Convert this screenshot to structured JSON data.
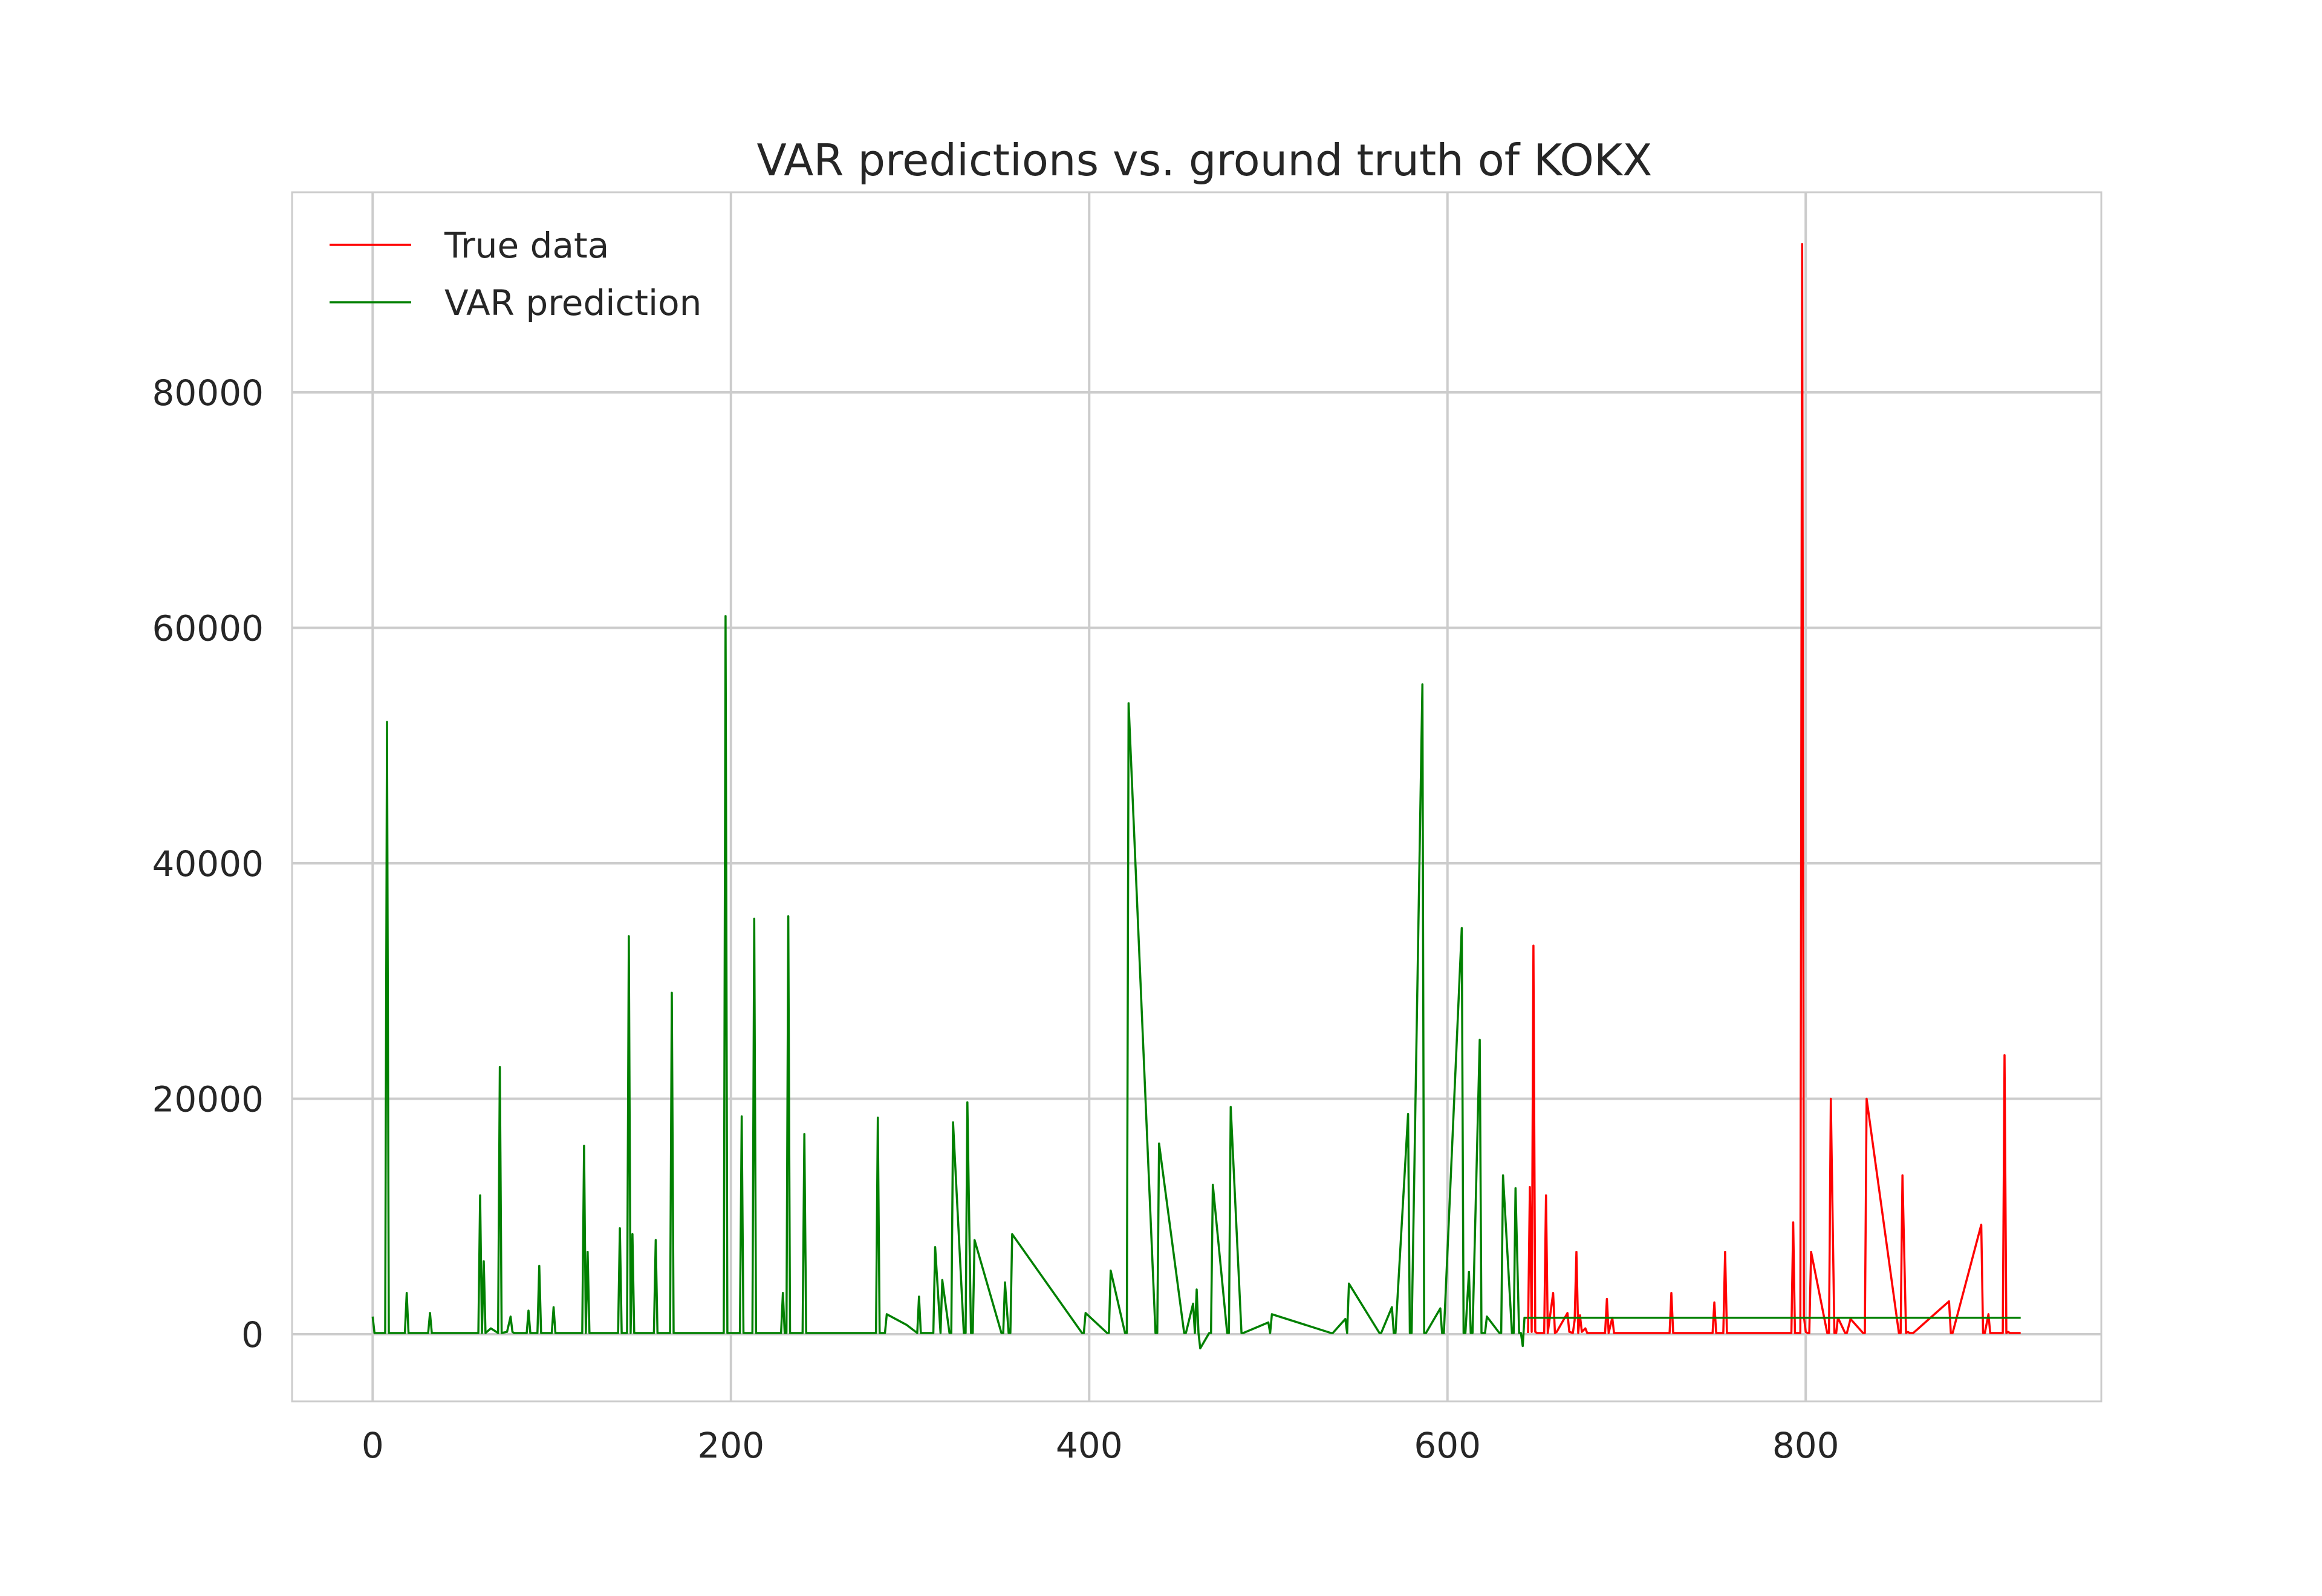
{
  "chart_data": {
    "type": "line",
    "title": "VAR predictions vs. ground truth of KOKX",
    "xlabel": "",
    "ylabel": "",
    "xlim": [
      -45,
      965
    ],
    "ylim": [
      -5700,
      97000
    ],
    "grid": true,
    "legend_position": "top-left",
    "xticks": [
      0,
      200,
      400,
      600,
      800
    ],
    "xtick_labels": [
      "0",
      "200",
      "400",
      "600",
      "800"
    ],
    "yticks": [
      0,
      20000,
      40000,
      60000,
      80000
    ],
    "ytick_labels": [
      "0",
      "20000",
      "40000",
      "60000",
      "80000"
    ],
    "series": [
      {
        "name": "VAR prediction",
        "color": "#008000",
        "x": [
          0,
          1,
          2,
          7,
          8,
          9,
          18,
          19,
          20,
          31,
          32,
          33,
          59,
          60,
          61,
          62,
          63,
          66,
          70,
          71,
          72,
          75,
          77,
          78,
          79,
          86,
          87,
          88,
          92,
          93,
          94,
          100,
          101,
          102,
          117,
          118,
          119,
          120,
          121,
          122,
          137,
          138,
          139,
          142,
          143,
          144,
          145,
          146,
          147,
          157,
          158,
          159,
          166,
          167,
          168,
          196,
          197,
          198,
          205,
          206,
          207,
          212,
          213,
          214,
          228,
          229,
          230,
          231,
          232,
          233,
          240,
          241,
          242,
          281,
          282,
          283,
          286,
          287,
          298,
          304,
          305,
          306,
          313,
          314,
          317,
          318,
          322,
          323,
          324,
          330,
          331,
          332,
          334,
          335,
          336,
          351,
          352,
          353,
          355,
          356,
          357,
          396,
          397,
          398,
          410,
          411,
          412,
          420,
          421,
          422,
          437,
          438,
          439,
          453,
          454,
          458,
          459,
          460,
          461,
          462,
          467,
          468,
          469,
          477,
          478,
          479,
          485,
          486,
          500,
          501,
          502,
          535,
          536,
          543,
          544,
          545,
          562,
          563,
          569,
          570,
          571,
          578,
          579,
          580,
          586,
          587,
          588,
          596,
          597,
          598,
          608,
          609,
          610,
          612,
          613,
          614,
          618,
          619,
          621,
          622,
          629,
          630,
          631,
          636,
          637,
          638,
          640,
          641,
          642,
          643,
          644,
          645
        ],
        "y": [
          1500,
          100,
          100,
          100,
          52000,
          100,
          100,
          3500,
          100,
          100,
          1800,
          100,
          100,
          11800,
          100,
          6200,
          100,
          500,
          100,
          22700,
          100,
          200,
          1500,
          200,
          100,
          100,
          2000,
          100,
          100,
          5800,
          100,
          100,
          2300,
          100,
          100,
          16000,
          100,
          7000,
          100,
          100,
          100,
          9000,
          100,
          100,
          33800,
          100,
          8500,
          100,
          100,
          100,
          8000,
          100,
          100,
          29000,
          100,
          100,
          61000,
          100,
          100,
          18500,
          100,
          100,
          35300,
          100,
          100,
          3500,
          100,
          100,
          35500,
          100,
          100,
          17000,
          100,
          100,
          18400,
          100,
          100,
          1700,
          800,
          100,
          3200,
          100,
          100,
          7400,
          100,
          4600,
          100,
          100,
          18000,
          100,
          100,
          19700,
          100,
          100,
          8000,
          100,
          100,
          4400,
          100,
          100,
          8500,
          100,
          100,
          1800,
          100,
          100,
          5400,
          100,
          100,
          53600,
          100,
          100,
          16200,
          100,
          100,
          2600,
          100,
          3800,
          100,
          -1200,
          100,
          100,
          12700,
          100,
          100,
          19300,
          100,
          100,
          1000,
          100,
          1700,
          100,
          100,
          1300,
          100,
          4300,
          100,
          100,
          2300,
          100,
          100,
          18700,
          100,
          100,
          55200,
          100,
          100,
          2200,
          100,
          100,
          34500,
          100,
          100,
          5300,
          100,
          100,
          25000,
          100,
          100,
          1500,
          100,
          100,
          13500,
          100,
          100,
          12400,
          100,
          100,
          -1000,
          1400,
          1400,
          1400
        ],
        "constant_tail": {
          "from_x": 645,
          "to_x": 920,
          "y": 1400
        }
      },
      {
        "name": "True data",
        "color": "#ff0000",
        "x": [
          645,
          646,
          647,
          648,
          649,
          650,
          654,
          655,
          656,
          659,
          660,
          661,
          667,
          668,
          670,
          671,
          672,
          673,
          674,
          675,
          677,
          678,
          688,
          689,
          690,
          692,
          693,
          724,
          725,
          726,
          748,
          749,
          750,
          754,
          755,
          756,
          792,
          793,
          794,
          797,
          798,
          799,
          800,
          801,
          802,
          803,
          812,
          813,
          814,
          816,
          817,
          818,
          822,
          823,
          825,
          832,
          833,
          834,
          852,
          853,
          854,
          856,
          857,
          858,
          860,
          880,
          881,
          882,
          898,
          899,
          900,
          902,
          903,
          910,
          911,
          912,
          913,
          914,
          918,
          920
        ],
        "y": [
          100,
          12500,
          200,
          33000,
          200,
          100,
          100,
          11800,
          100,
          3500,
          100,
          200,
          1800,
          200,
          100,
          1200,
          7000,
          100,
          1600,
          200,
          500,
          100,
          100,
          3000,
          100,
          1400,
          100,
          100,
          3500,
          100,
          100,
          2700,
          100,
          100,
          7000,
          100,
          100,
          9500,
          100,
          100,
          92600,
          1500,
          200,
          100,
          100,
          7000,
          100,
          100,
          20000,
          100,
          100,
          1400,
          100,
          100,
          1300,
          100,
          100,
          20000,
          100,
          100,
          13500,
          100,
          200,
          100,
          100,
          2800,
          100,
          100,
          9300,
          100,
          100,
          1700,
          100,
          100,
          23700,
          100,
          200,
          100,
          100,
          100
        ]
      }
    ]
  }
}
